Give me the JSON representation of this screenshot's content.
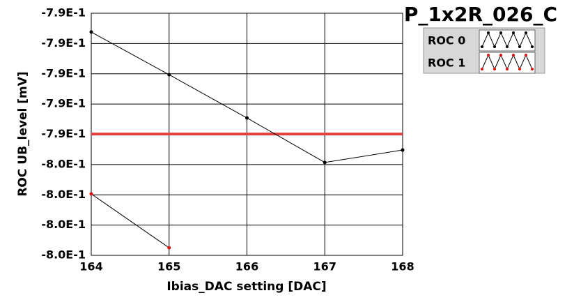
{
  "chart_data": {
    "type": "line",
    "title": "P_1x2R_026_C",
    "x_label": "Ibias_DAC setting [DAC]",
    "y_label": "ROC UB_level [mV]",
    "x": [
      164,
      165,
      166,
      167,
      168
    ],
    "xlim": [
      164,
      168
    ],
    "xticks": [
      164,
      165,
      166,
      167,
      168
    ],
    "ylim": [
      -0.7985,
      -0.7905
    ],
    "yticks": [
      {
        "value": -0.7905,
        "label": "-7.9E-1"
      },
      {
        "value": -0.7915,
        "label": "-7.9E-1"
      },
      {
        "value": -0.7925,
        "label": "-7.9E-1"
      },
      {
        "value": -0.7935,
        "label": "-7.9E-1"
      },
      {
        "value": -0.7945,
        "label": "-7.9E-1"
      },
      {
        "value": -0.7955,
        "label": "-8.0E-1"
      },
      {
        "value": -0.7965,
        "label": "-8.0E-1"
      },
      {
        "value": -0.7975,
        "label": "-8.0E-1"
      },
      {
        "value": -0.7985,
        "label": "-8.0E-1"
      }
    ],
    "grid": true,
    "series": [
      {
        "name": "ROC 0",
        "color": "#000000",
        "values": [
          -0.79112,
          -0.79253,
          -0.79396,
          -0.79543,
          -0.79502
        ]
      },
      {
        "name": "ROC 1",
        "color": "#e01010",
        "values": [
          -0.79647,
          -0.79825,
          null,
          null,
          null
        ]
      }
    ],
    "reference_line": {
      "value": -0.79449,
      "color": "#e04040"
    }
  }
}
